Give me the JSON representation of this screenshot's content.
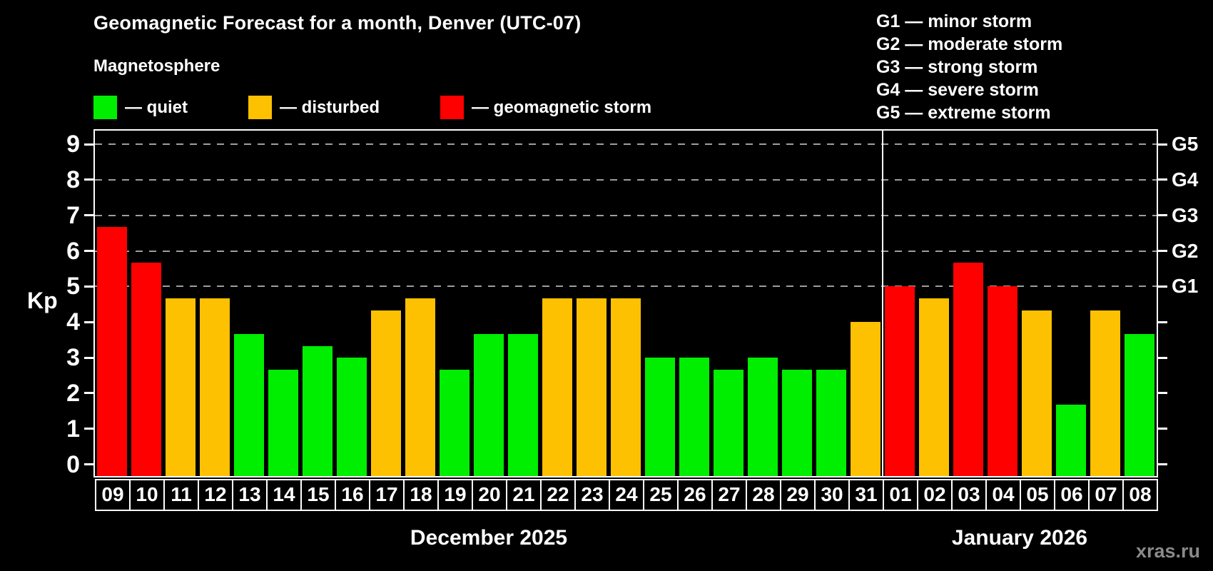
{
  "header": {
    "title": "Geomagnetic Forecast for a month, Denver (UTC-07)",
    "subtitle": "Magnetosphere"
  },
  "legend": {
    "items": [
      {
        "key": "quiet",
        "label": "— quiet",
        "color": "#00ee00"
      },
      {
        "key": "disturbed",
        "label": "— disturbed",
        "color": "#fdc102"
      },
      {
        "key": "storm",
        "label": "— geomagnetic storm",
        "color": "#fe0000"
      }
    ]
  },
  "g_scale_legend": {
    "lines": [
      "G1 — minor storm",
      "G2 — moderate storm",
      "G3 — strong storm",
      "G4 — severe storm",
      "G5 — extreme storm"
    ]
  },
  "watermark": "xras.ru",
  "chart_data": {
    "type": "bar",
    "title": "Geomagnetic Forecast for a month, Denver (UTC-07)",
    "ylabel": "Kp",
    "ylim": [
      -0.4,
      9.45
    ],
    "yticks": [
      0,
      1,
      2,
      3,
      4,
      5,
      6,
      7,
      8,
      9
    ],
    "gridlines_at_kp": [
      5,
      6,
      7,
      8,
      9
    ],
    "grid": "dashed horizontal at G-levels only",
    "legend_position": "top-left",
    "right_axis": [
      {
        "kp": 5,
        "label": "G1"
      },
      {
        "kp": 6,
        "label": "G2"
      },
      {
        "kp": 7,
        "label": "G3"
      },
      {
        "kp": 8,
        "label": "G4"
      },
      {
        "kp": 9,
        "label": "G5"
      }
    ],
    "months": [
      {
        "label": "December 2025",
        "days": 23
      },
      {
        "label": "January 2026",
        "days": 8
      }
    ],
    "bars": [
      {
        "day": "09",
        "kp": 6.67,
        "status": "storm"
      },
      {
        "day": "10",
        "kp": 5.67,
        "status": "storm"
      },
      {
        "day": "11",
        "kp": 4.67,
        "status": "disturbed"
      },
      {
        "day": "12",
        "kp": 4.67,
        "status": "disturbed"
      },
      {
        "day": "13",
        "kp": 3.67,
        "status": "quiet"
      },
      {
        "day": "14",
        "kp": 2.67,
        "status": "quiet"
      },
      {
        "day": "15",
        "kp": 3.33,
        "status": "quiet"
      },
      {
        "day": "16",
        "kp": 3.0,
        "status": "quiet"
      },
      {
        "day": "17",
        "kp": 4.33,
        "status": "disturbed"
      },
      {
        "day": "18",
        "kp": 4.67,
        "status": "disturbed"
      },
      {
        "day": "19",
        "kp": 2.67,
        "status": "quiet"
      },
      {
        "day": "20",
        "kp": 3.67,
        "status": "quiet"
      },
      {
        "day": "21",
        "kp": 3.67,
        "status": "quiet"
      },
      {
        "day": "22",
        "kp": 4.67,
        "status": "disturbed"
      },
      {
        "day": "23",
        "kp": 4.67,
        "status": "disturbed"
      },
      {
        "day": "24",
        "kp": 4.67,
        "status": "disturbed"
      },
      {
        "day": "25",
        "kp": 3.0,
        "status": "quiet"
      },
      {
        "day": "26",
        "kp": 3.0,
        "status": "quiet"
      },
      {
        "day": "27",
        "kp": 2.67,
        "status": "quiet"
      },
      {
        "day": "28",
        "kp": 3.0,
        "status": "quiet"
      },
      {
        "day": "29",
        "kp": 2.67,
        "status": "quiet"
      },
      {
        "day": "30",
        "kp": 2.67,
        "status": "quiet"
      },
      {
        "day": "31",
        "kp": 4.0,
        "status": "disturbed"
      },
      {
        "day": "01",
        "kp": 5.0,
        "status": "storm"
      },
      {
        "day": "02",
        "kp": 4.67,
        "status": "disturbed"
      },
      {
        "day": "03",
        "kp": 5.67,
        "status": "storm"
      },
      {
        "day": "04",
        "kp": 5.0,
        "status": "storm"
      },
      {
        "day": "05",
        "kp": 4.33,
        "status": "disturbed"
      },
      {
        "day": "06",
        "kp": 1.67,
        "status": "quiet"
      },
      {
        "day": "07",
        "kp": 4.33,
        "status": "disturbed"
      },
      {
        "day": "08",
        "kp": 3.67,
        "status": "quiet"
      }
    ]
  }
}
